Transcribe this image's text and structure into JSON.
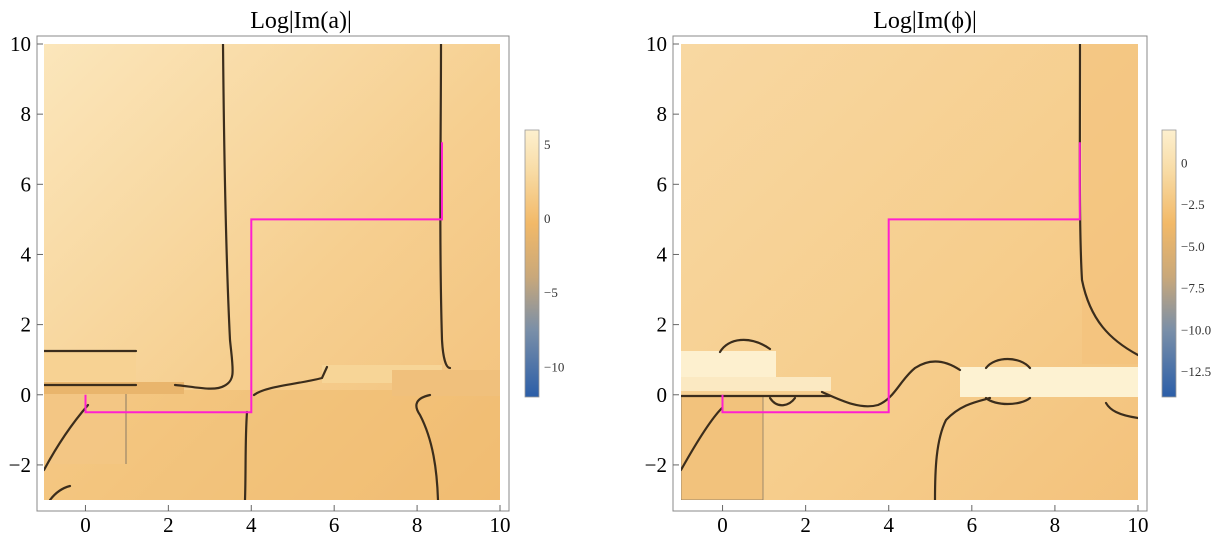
{
  "chart_data": [
    {
      "type": "heatmap",
      "title": "Log|Im(a)|",
      "xlim": [
        -1,
        10
      ],
      "ylim": [
        -3.2,
        10.2
      ],
      "x_ticks": [
        0,
        2,
        4,
        6,
        8,
        10
      ],
      "x_tick_labels": [
        "0",
        "2",
        "4",
        "6",
        "8",
        "10"
      ],
      "y_ticks": [
        -2,
        0,
        2,
        4,
        6,
        8,
        10
      ],
      "y_tick_labels": [
        "−2",
        "0",
        "2",
        "4",
        "6",
        "8",
        "10"
      ],
      "plot_domain": {
        "x": [
          -1,
          10
        ],
        "y": [
          -3,
          10
        ]
      },
      "colorbar": {
        "range": [
          -12,
          6
        ],
        "ticks": [
          5,
          0,
          -5,
          -10
        ],
        "tick_labels": [
          "5",
          "0",
          "−5",
          "−10"
        ],
        "colors": [
          "#2b5ea8",
          "#7a8fa8",
          "#c9a87a",
          "#f2b968",
          "#f8dca6",
          "#fdf0cf"
        ]
      },
      "contour_path": {
        "color": "#ff1fd0",
        "points": [
          [
            0,
            0
          ],
          [
            0,
            -0.5
          ],
          [
            4,
            -0.5
          ],
          [
            4,
            5
          ],
          [
            8.6,
            5
          ],
          [
            8.6,
            7.2
          ]
        ]
      }
    },
    {
      "type": "heatmap",
      "title": "Log|Im(ϕ)|",
      "xlim": [
        -1,
        10
      ],
      "ylim": [
        -3.2,
        10.2
      ],
      "x_ticks": [
        0,
        2,
        4,
        6,
        8,
        10
      ],
      "x_tick_labels": [
        "0",
        "2",
        "4",
        "6",
        "8",
        "10"
      ],
      "y_ticks": [
        -2,
        0,
        2,
        4,
        6,
        8,
        10
      ],
      "y_tick_labels": [
        "−2",
        "0",
        "2",
        "4",
        "6",
        "8",
        "10"
      ],
      "plot_domain": {
        "x": [
          -1,
          10
        ],
        "y": [
          -3,
          10
        ]
      },
      "colorbar": {
        "range": [
          -14,
          2
        ],
        "ticks": [
          0,
          -2.5,
          -5.0,
          -7.5,
          -10.0,
          -12.5
        ],
        "tick_labels": [
          "0",
          "−2.5",
          "−5.0",
          "−7.5",
          "−10.0",
          "−12.5"
        ],
        "colors": [
          "#2b5ea8",
          "#7a8fa8",
          "#c9a87a",
          "#f2b968",
          "#f8dca6",
          "#fdf0cf"
        ]
      },
      "contour_path": {
        "color": "#ff1fd0",
        "points": [
          [
            0,
            0
          ],
          [
            0,
            -0.5
          ],
          [
            4,
            -0.5
          ],
          [
            4,
            5
          ],
          [
            8.6,
            5
          ],
          [
            8.6,
            7.2
          ]
        ]
      }
    }
  ]
}
